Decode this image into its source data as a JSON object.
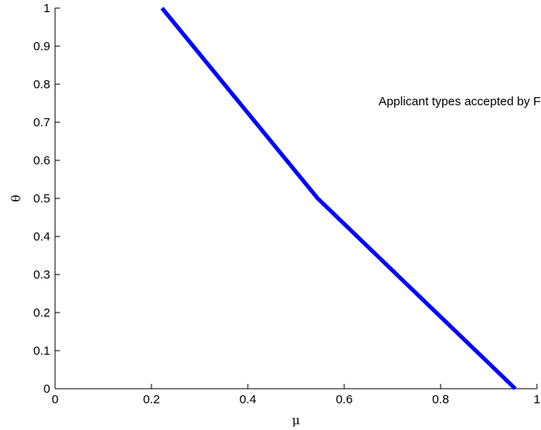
{
  "chart_data": {
    "type": "line",
    "title": "",
    "xlabel": "μ",
    "ylabel": "θ",
    "xlim": [
      0,
      1
    ],
    "ylim": [
      0,
      1
    ],
    "xticks": [
      0,
      0.2,
      0.4,
      0.6,
      0.8,
      1
    ],
    "xtick_labels": [
      "0",
      "0.2",
      "0.4",
      "0.6",
      "0.8",
      "1"
    ],
    "yticks": [
      0,
      0.1,
      0.2,
      0.3,
      0.4,
      0.5,
      0.6,
      0.7,
      0.8,
      0.9,
      1
    ],
    "ytick_labels": [
      "0",
      "0.1",
      "0.2",
      "0.3",
      "0.4",
      "0.5",
      "0.6",
      "0.7",
      "0.8",
      "0.9",
      "1"
    ],
    "grid": false,
    "series": [
      {
        "x": [
          0.222,
          0.545,
          0.955
        ],
        "y": [
          1.0,
          0.5,
          0.0
        ],
        "color": "#0000ff"
      }
    ],
    "annotations": [
      {
        "text": "Applicant types accepted by Fraternity",
        "x": 0.885,
        "y": 0.745
      }
    ]
  }
}
